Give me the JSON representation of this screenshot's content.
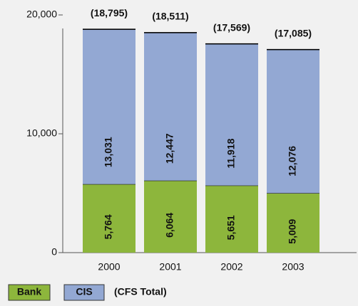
{
  "chart_data": {
    "type": "stacked_bar",
    "categories": [
      "2000",
      "2001",
      "2002",
      "2003"
    ],
    "series": [
      {
        "name": "Bank",
        "color": "#8db63c",
        "values": [
          5764,
          6064,
          5651,
          5009
        ],
        "value_labels": [
          "5,764",
          "6,064",
          "5,651",
          "5,009"
        ]
      },
      {
        "name": "CIS",
        "color": "#93a8d3",
        "values": [
          13031,
          12447,
          11918,
          12076
        ],
        "value_labels": [
          "13,031",
          "12,447",
          "11,918",
          "12,076"
        ]
      }
    ],
    "totals": {
      "name": "(CFS Total)",
      "values": [
        18795,
        18511,
        17569,
        17085
      ],
      "value_labels": [
        "(18,795)",
        "(18,511)",
        "(17,569)",
        "(17,085)"
      ]
    },
    "ylim": [
      0,
      20000
    ],
    "yticks": [
      0,
      {
        "value": 10000,
        "label": "10,000"
      },
      {
        "value": 20000,
        "label": "20,000"
      }
    ]
  }
}
